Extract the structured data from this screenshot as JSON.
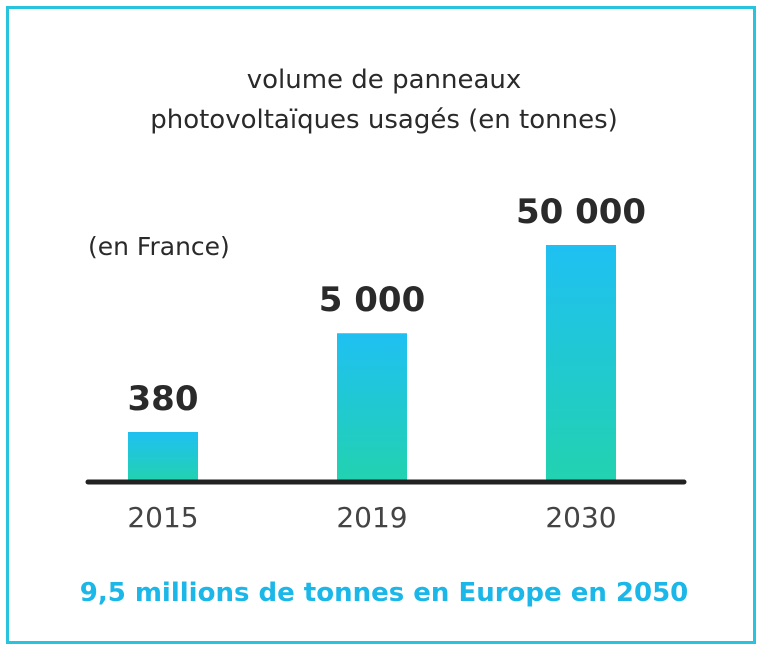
{
  "chart_data": {
    "type": "bar",
    "title_lines": [
      "volume de panneaux",
      "photovoltaïques usagés (en tonnes)"
    ],
    "subtitle": "(en France)",
    "categories": [
      "2015",
      "2019",
      "2030"
    ],
    "values": [
      380,
      5000,
      50000
    ],
    "value_labels": [
      "380",
      "5 000",
      "50 000"
    ],
    "xlabel": "",
    "ylabel": "",
    "grid": false,
    "legend": "none"
  },
  "footer": "9,5 millions de tonnes en Europe en 2050",
  "colors": {
    "border": "#29c3dd",
    "bar_top": "#1fc0f2",
    "bar_bottom": "#22d2b0",
    "axis": "#222222",
    "footer_text": "#1ab7e8"
  }
}
